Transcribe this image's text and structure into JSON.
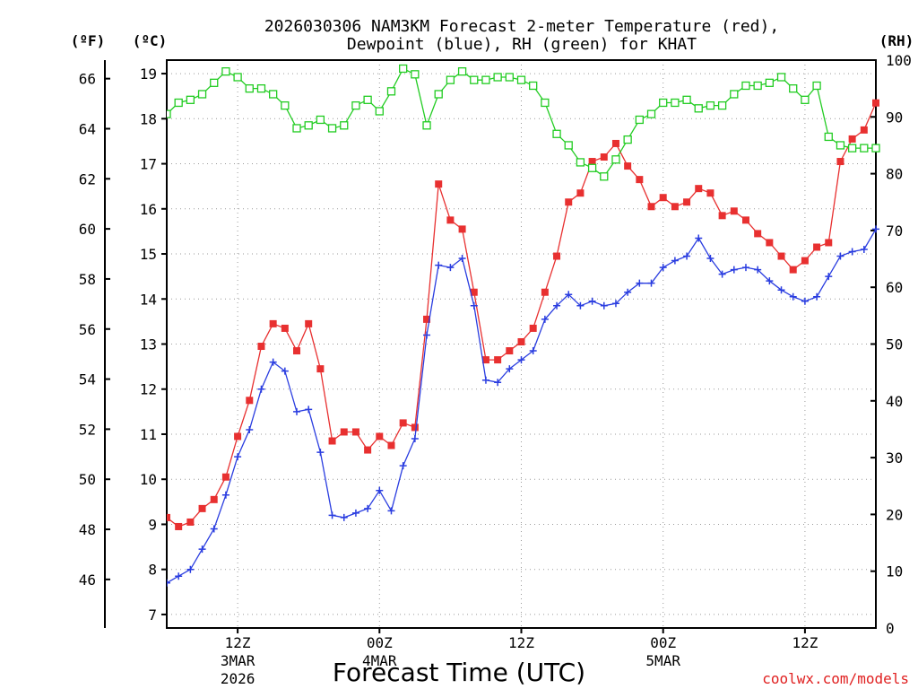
{
  "chart_data": {
    "type": "line",
    "title_line1": "2026030306 NAM3KM Forecast 2-meter Temperature (red),",
    "title_line2": "Dewpoint (blue), RH (green) for KHAT",
    "xlabel": "Forecast Time (UTC)",
    "credit": "coolwx.com/models",
    "units": {
      "fahrenheit": "(ºF)",
      "celsius": "(ºC)",
      "rh": "(RH)"
    },
    "x_range_hours": [
      0,
      60
    ],
    "x_ticks": [
      {
        "hour": 6,
        "label": "12Z",
        "sub1": "3MAR",
        "sub2": "2026"
      },
      {
        "hour": 18,
        "label": "00Z",
        "sub1": "4MAR",
        "sub2": ""
      },
      {
        "hour": 30,
        "label": "12Z",
        "sub1": "",
        "sub2": ""
      },
      {
        "hour": 42,
        "label": "00Z",
        "sub1": "5MAR",
        "sub2": ""
      },
      {
        "hour": 54,
        "label": "12Z",
        "sub1": "",
        "sub2": ""
      }
    ],
    "y_left_celsius": {
      "range": [
        6.7,
        19.3
      ],
      "ticks": [
        "7",
        "8",
        "9",
        "10",
        "11",
        "12",
        "13",
        "14",
        "15",
        "16",
        "17",
        "18",
        "19"
      ]
    },
    "y_left_fahrenheit": {
      "ticks": [
        "46",
        "48",
        "50",
        "52",
        "54",
        "56",
        "58",
        "60",
        "62",
        "64",
        "66"
      ]
    },
    "y_right_rh": {
      "range": [
        0,
        100
      ],
      "ticks": [
        "0",
        "10",
        "20",
        "30",
        "40",
        "50",
        "60",
        "70",
        "80",
        "90",
        "100"
      ]
    },
    "series": [
      {
        "name": "2-meter Temperature",
        "color": "#e83030",
        "axis": "celsius",
        "marker": "filled-square",
        "values": [
          9.15,
          8.95,
          9.05,
          9.35,
          9.55,
          10.05,
          10.95,
          11.75,
          12.95,
          13.45,
          13.35,
          12.85,
          13.45,
          12.45,
          10.85,
          11.05,
          11.05,
          10.65,
          10.95,
          10.75,
          11.25,
          11.15,
          13.55,
          16.55,
          15.75,
          15.55,
          14.15,
          12.65,
          12.65,
          12.85,
          13.05,
          13.35,
          14.15,
          14.95,
          16.15,
          16.35,
          17.05,
          17.15,
          17.45,
          16.95,
          16.65,
          16.05,
          16.25,
          16.05,
          16.15,
          16.45,
          16.35,
          15.85,
          15.95,
          15.75,
          15.45,
          15.25,
          14.95,
          14.65,
          14.85,
          15.15,
          15.25,
          17.05,
          17.55,
          17.75,
          18.35
        ]
      },
      {
        "name": "Dewpoint",
        "color": "#2a3de0",
        "axis": "celsius",
        "marker": "plus",
        "values": [
          7.7,
          7.85,
          8.0,
          8.45,
          8.9,
          9.65,
          10.5,
          11.1,
          12.0,
          12.6,
          12.4,
          11.5,
          11.55,
          10.6,
          9.2,
          9.15,
          9.25,
          9.35,
          9.75,
          9.3,
          10.3,
          10.9,
          13.2,
          14.75,
          14.7,
          14.9,
          13.85,
          12.2,
          12.15,
          12.45,
          12.65,
          12.85,
          13.55,
          13.85,
          14.1,
          13.85,
          13.95,
          13.85,
          13.9,
          14.15,
          14.35,
          14.35,
          14.7,
          14.85,
          14.95,
          15.35,
          14.9,
          14.55,
          14.65,
          14.7,
          14.65,
          14.4,
          14.2,
          14.05,
          13.95,
          14.05,
          14.5,
          14.95,
          15.05,
          15.1,
          15.55
        ]
      },
      {
        "name": "RH",
        "color": "#22cc22",
        "axis": "rh",
        "marker": "open-square",
        "values": [
          90.5,
          92.5,
          93,
          94,
          96,
          98,
          97,
          95,
          95,
          94,
          92,
          88,
          88.5,
          89.5,
          88,
          88.5,
          92,
          93,
          91,
          94.5,
          98.5,
          97.5,
          88.5,
          94,
          96.5,
          98,
          96.5,
          96.5,
          97,
          97,
          96.5,
          95.5,
          92.5,
          87,
          85,
          82,
          81,
          79.5,
          82.5,
          86,
          89.5,
          90.5,
          92.5,
          92.5,
          93,
          91.5,
          92,
          92,
          94,
          95.5,
          95.5,
          96,
          97,
          95,
          93,
          95.5,
          86.5,
          85,
          84.5,
          84.5,
          84.5
        ]
      }
    ]
  }
}
